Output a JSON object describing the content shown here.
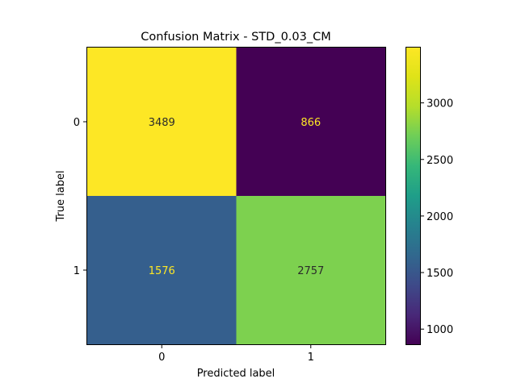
{
  "chart_data": {
    "type": "heatmap",
    "title": "Confusion Matrix - STD_0.03_CM",
    "xlabel": "Predicted label",
    "ylabel": "True label",
    "x_categories": [
      "0",
      "1"
    ],
    "y_categories": [
      "0",
      "1"
    ],
    "values": [
      [
        3489,
        866
      ],
      [
        1576,
        2757
      ]
    ],
    "value_labels": [
      [
        "3489",
        "866"
      ],
      [
        "1576",
        "2757"
      ]
    ],
    "colormap": "viridis",
    "colorbar": {
      "range": [
        866,
        3489
      ],
      "ticks": [
        1000,
        1500,
        2000,
        2500,
        3000
      ],
      "tick_labels": [
        "1000",
        "1500",
        "2000",
        "2500",
        "3000"
      ]
    },
    "grid": false
  }
}
